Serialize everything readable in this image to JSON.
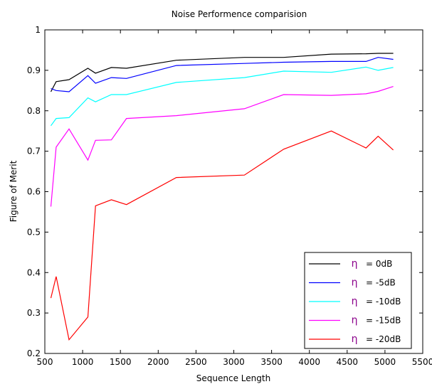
{
  "chart_data": {
    "type": "line",
    "title": "Noise Performence comparision",
    "xlabel": "Sequence Length",
    "ylabel": "Figure of Merit",
    "xlim": [
      500,
      5500
    ],
    "ylim": [
      0.2,
      1.0
    ],
    "xticks": [
      "500",
      "1000",
      "1500",
      "2000",
      "2500",
      "3000",
      "3500",
      "4000",
      "4500",
      "5000",
      "5500"
    ],
    "yticks": [
      "0.2",
      "0.3",
      "0.4",
      "0.5",
      "0.6",
      "0.7",
      "0.8",
      "0.9",
      "1"
    ],
    "xtick_values": [
      500,
      1000,
      1500,
      2000,
      2500,
      3000,
      3500,
      4000,
      4500,
      5000,
      5500
    ],
    "ytick_values": [
      0.2,
      0.3,
      0.4,
      0.5,
      0.6,
      0.7,
      0.8,
      0.9,
      1.0
    ],
    "legend_position": "bottom-right",
    "grid": false,
    "legend_symbol": "η",
    "series": [
      {
        "name": "= 0dB",
        "color": "#000000",
        "x": [
          580,
          650,
          820,
          1070,
          1170,
          1380,
          1580,
          2240,
          3140,
          3660,
          4290,
          4750,
          4910,
          5110
        ],
        "y": [
          0.847,
          0.872,
          0.877,
          0.905,
          0.893,
          0.907,
          0.905,
          0.925,
          0.932,
          0.932,
          0.94,
          0.941,
          0.942,
          0.942
        ]
      },
      {
        "name": "= -5dB",
        "color": "#0000ff",
        "x": [
          580,
          650,
          820,
          1070,
          1170,
          1380,
          1580,
          2240,
          3140,
          3660,
          4290,
          4750,
          4910,
          5110
        ],
        "y": [
          0.855,
          0.85,
          0.847,
          0.887,
          0.868,
          0.882,
          0.88,
          0.912,
          0.917,
          0.92,
          0.922,
          0.922,
          0.932,
          0.927
        ]
      },
      {
        "name": "= -10dB",
        "color": "#00ffff",
        "x": [
          580,
          650,
          820,
          1070,
          1170,
          1380,
          1580,
          2240,
          3140,
          3660,
          4290,
          4750,
          4910,
          5110
        ],
        "y": [
          0.763,
          0.781,
          0.783,
          0.832,
          0.822,
          0.84,
          0.84,
          0.87,
          0.882,
          0.898,
          0.895,
          0.908,
          0.9,
          0.907
        ]
      },
      {
        "name": "= -15dB",
        "color": "#ff00ff",
        "x": [
          580,
          650,
          820,
          1070,
          1170,
          1380,
          1580,
          2240,
          3140,
          3660,
          4290,
          4750,
          4910,
          5110
        ],
        "y": [
          0.563,
          0.71,
          0.755,
          0.678,
          0.727,
          0.728,
          0.781,
          0.788,
          0.805,
          0.84,
          0.838,
          0.842,
          0.848,
          0.86
        ]
      },
      {
        "name": "= -20dB",
        "color": "#ff0000",
        "x": [
          580,
          650,
          820,
          1070,
          1170,
          1380,
          1580,
          2240,
          3140,
          3660,
          4290,
          4750,
          4910,
          5110
        ],
        "y": [
          0.337,
          0.39,
          0.234,
          0.29,
          0.565,
          0.58,
          0.568,
          0.635,
          0.641,
          0.705,
          0.75,
          0.708,
          0.737,
          0.703
        ]
      }
    ]
  }
}
